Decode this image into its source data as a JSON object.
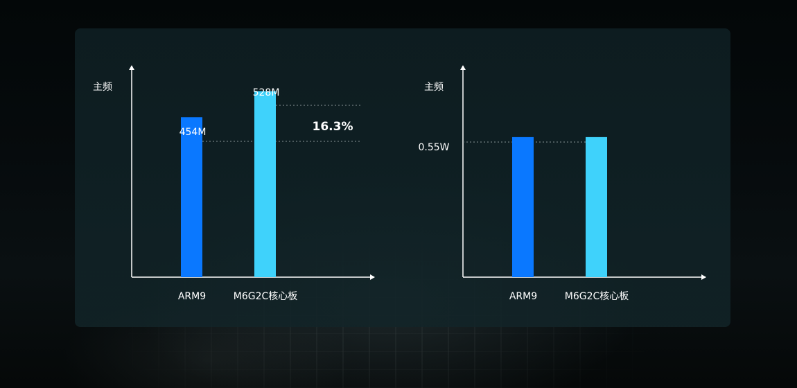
{
  "chart_data": [
    {
      "type": "bar",
      "ylabel": "主频",
      "categories": [
        "ARM9",
        "M6G2C核心板"
      ],
      "values": [
        454,
        528
      ],
      "value_labels": [
        "454M",
        "528M"
      ],
      "annotation": "16.3%",
      "ylim": [
        0,
        600
      ],
      "colors": [
        "#0a78ff",
        "#3fd2fb"
      ],
      "grid": false
    },
    {
      "type": "bar",
      "ylabel": "主频",
      "categories": [
        "ARM9",
        "M6G2C核心板"
      ],
      "values": [
        0.55,
        0.55
      ],
      "tick_label": "0.55W",
      "ylim": [
        0,
        0.83
      ],
      "colors": [
        "#0a78ff",
        "#3fd2fb"
      ],
      "grid": false
    }
  ]
}
